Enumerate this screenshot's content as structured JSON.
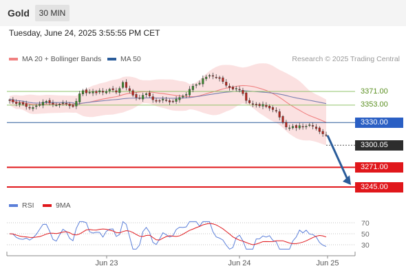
{
  "header": {
    "symbol": "Gold",
    "timeframe": "30 MIN"
  },
  "timestamp": "Tuesday, June 24, 2025 3:55:55 PM CET",
  "credit": "Research © 2025 Trading Central",
  "legend": {
    "bollinger": {
      "label": "MA 20 + Bollinger Bands",
      "color": "#f08080"
    },
    "ma50": {
      "label": "MA 50",
      "color": "#2a5c9a"
    },
    "rsi": {
      "label": "RSI",
      "color": "#5b7fd9"
    },
    "rsi_ma": {
      "label": "9MA",
      "color": "#e0171b"
    }
  },
  "levels": [
    {
      "label": "3371.00",
      "value": 3371,
      "kind": "plain",
      "color": "#92c36a"
    },
    {
      "label": "3353.00",
      "value": 3353,
      "kind": "plain",
      "color": "#92c36a"
    },
    {
      "label": "3330.00",
      "value": 3330,
      "kind": "blue",
      "color": "#2a5c9a"
    },
    {
      "label": "3300.05",
      "value": 3300.05,
      "kind": "dark",
      "color": "#555555"
    },
    {
      "label": "3271.00",
      "value": 3271,
      "kind": "red",
      "color": "#e0171b"
    },
    {
      "label": "3245.00",
      "value": 3245,
      "kind": "red",
      "color": "#e0171b"
    }
  ],
  "chart_data": {
    "type": "candlestick",
    "timeframe": "30 MIN",
    "x_ticks": [
      "Jun 23",
      "Jun 24",
      "Jun 25"
    ],
    "price_range_approx": [
      3238,
      3410
    ],
    "close_approx": [
      3359,
      3357,
      3355,
      3356,
      3354,
      3351,
      3349,
      3350,
      3352,
      3354,
      3357,
      3358,
      3356,
      3354,
      3353,
      3354,
      3356,
      3355,
      3352,
      3351,
      3358,
      3368,
      3372,
      3369,
      3370,
      3371,
      3369,
      3372,
      3370,
      3371,
      3374,
      3373,
      3370,
      3375,
      3383,
      3376,
      3372,
      3366,
      3363,
      3362,
      3366,
      3368,
      3365,
      3360,
      3358,
      3359,
      3361,
      3359,
      3357,
      3358,
      3361,
      3363,
      3365,
      3367,
      3374,
      3378,
      3380,
      3382,
      3388,
      3390,
      3392,
      3391,
      3389,
      3388,
      3384,
      3379,
      3376,
      3374,
      3375,
      3373,
      3368,
      3359,
      3356,
      3354,
      3353,
      3352,
      3354,
      3351,
      3349,
      3347,
      3345,
      3337,
      3330,
      3324,
      3323,
      3325,
      3323,
      3326,
      3324,
      3325,
      3327,
      3325,
      3322,
      3318,
      3315,
      3313
    ],
    "projection_target": 3245,
    "rsi": {
      "levels": [
        70,
        50,
        30
      ],
      "ylim": [
        15,
        80
      ]
    }
  }
}
